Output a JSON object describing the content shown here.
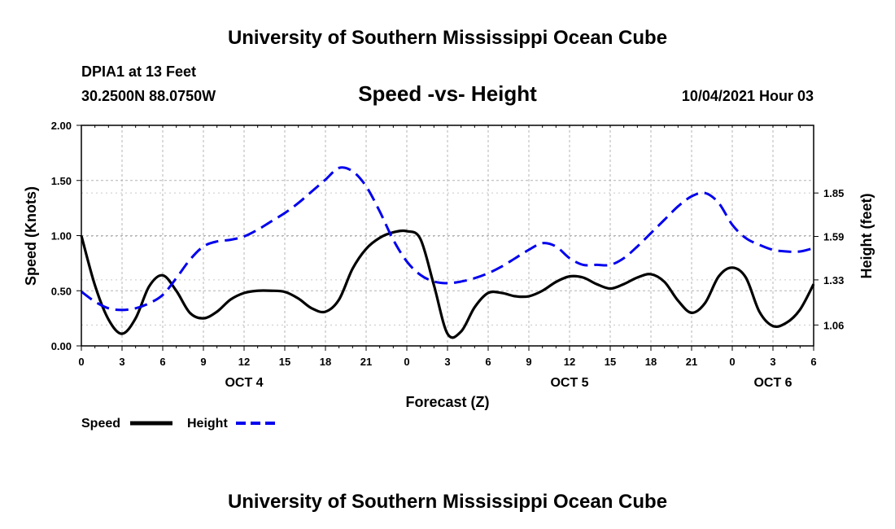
{
  "header": {
    "title_top": "University of Southern Mississippi Ocean Cube",
    "station": "DPIA1 at 13 Feet",
    "coords": "30.2500N  88.0750W",
    "chart_title": "Speed -vs- Height",
    "datetime": "10/04/2021 Hour 03"
  },
  "footer": {
    "title_bottom": "University of Southern Mississippi Ocean Cube"
  },
  "chart_data": {
    "type": "line",
    "title": "Speed -vs- Height",
    "xlabel": "Forecast (Z)",
    "ylabel_left": "Speed (Knots)",
    "ylabel_right": "Height (feet)",
    "x_range": [
      0,
      54
    ],
    "x_ticks": [
      0,
      3,
      6,
      9,
      12,
      15,
      18,
      21,
      24,
      27,
      30,
      33,
      36,
      39,
      42,
      45,
      48,
      51,
      54
    ],
    "x_tick_labels": [
      "0",
      "3",
      "6",
      "9",
      "12",
      "15",
      "18",
      "21",
      "0",
      "3",
      "6",
      "9",
      "12",
      "15",
      "18",
      "21",
      "0",
      "3",
      "6"
    ],
    "day_labels": [
      {
        "text": "OCT 4",
        "x": 12
      },
      {
        "text": "OCT 5",
        "x": 36
      },
      {
        "text": "OCT 6",
        "x": 51
      }
    ],
    "y_left": {
      "range": [
        0,
        2.0
      ],
      "ticks": [
        0,
        0.5,
        1.0,
        1.5,
        2.0
      ],
      "tick_labels": [
        "0.00",
        "0.50",
        "1.00",
        "1.50",
        "2.00"
      ]
    },
    "y_right": {
      "range": [
        0.935,
        2.255
      ],
      "ticks": [
        1.06,
        1.33,
        1.59,
        1.85
      ],
      "tick_labels": [
        "1.06",
        "1.33",
        "1.59",
        "1.85"
      ]
    },
    "grid": true,
    "series": [
      {
        "name": "Speed",
        "axis": "left",
        "color": "#000000",
        "dash": "solid",
        "x": [
          0,
          1,
          2,
          3,
          4,
          5,
          6,
          7,
          8,
          9,
          10,
          11,
          12,
          13,
          14,
          15,
          16,
          17,
          18,
          19,
          20,
          21,
          22,
          23,
          24,
          25,
          26,
          27,
          28,
          29,
          30,
          31,
          32,
          33,
          34,
          35,
          36,
          37,
          38,
          39,
          40,
          41,
          42,
          43,
          44,
          45,
          46,
          47,
          48,
          49,
          50,
          51,
          52,
          53,
          54
        ],
        "values": [
          1.0,
          0.55,
          0.24,
          0.11,
          0.25,
          0.54,
          0.64,
          0.5,
          0.3,
          0.25,
          0.31,
          0.42,
          0.48,
          0.5,
          0.5,
          0.49,
          0.43,
          0.34,
          0.31,
          0.42,
          0.7,
          0.88,
          0.98,
          1.03,
          1.04,
          0.97,
          0.55,
          0.11,
          0.13,
          0.35,
          0.48,
          0.48,
          0.45,
          0.45,
          0.5,
          0.58,
          0.63,
          0.62,
          0.56,
          0.52,
          0.56,
          0.62,
          0.65,
          0.58,
          0.41,
          0.3,
          0.39,
          0.63,
          0.71,
          0.62,
          0.31,
          0.18,
          0.21,
          0.33,
          0.56
        ]
      },
      {
        "name": "Height",
        "axis": "right",
        "color": "#0000ee",
        "dash": "dashed",
        "x": [
          0,
          1,
          2,
          3,
          4,
          5,
          6,
          7,
          8,
          9,
          10,
          11,
          12,
          13,
          14,
          15,
          16,
          17,
          18,
          19,
          20,
          21,
          22,
          23,
          24,
          25,
          26,
          27,
          28,
          29,
          30,
          31,
          32,
          33,
          34,
          35,
          36,
          37,
          38,
          39,
          40,
          41,
          42,
          43,
          44,
          45,
          46,
          47,
          48,
          49,
          50,
          51,
          52,
          53,
          54
        ],
        "values": [
          1.26,
          1.2,
          1.16,
          1.15,
          1.16,
          1.19,
          1.24,
          1.34,
          1.45,
          1.53,
          1.56,
          1.57,
          1.59,
          1.63,
          1.68,
          1.73,
          1.79,
          1.86,
          1.93,
          2.0,
          1.98,
          1.89,
          1.74,
          1.57,
          1.44,
          1.36,
          1.32,
          1.31,
          1.32,
          1.34,
          1.37,
          1.41,
          1.46,
          1.51,
          1.55,
          1.53,
          1.46,
          1.42,
          1.42,
          1.42,
          1.46,
          1.53,
          1.61,
          1.69,
          1.77,
          1.83,
          1.85,
          1.79,
          1.66,
          1.58,
          1.54,
          1.51,
          1.5,
          1.5,
          1.52
        ]
      }
    ],
    "legend": {
      "position": "bottom-left",
      "entries": [
        "Speed",
        "Height"
      ]
    }
  }
}
